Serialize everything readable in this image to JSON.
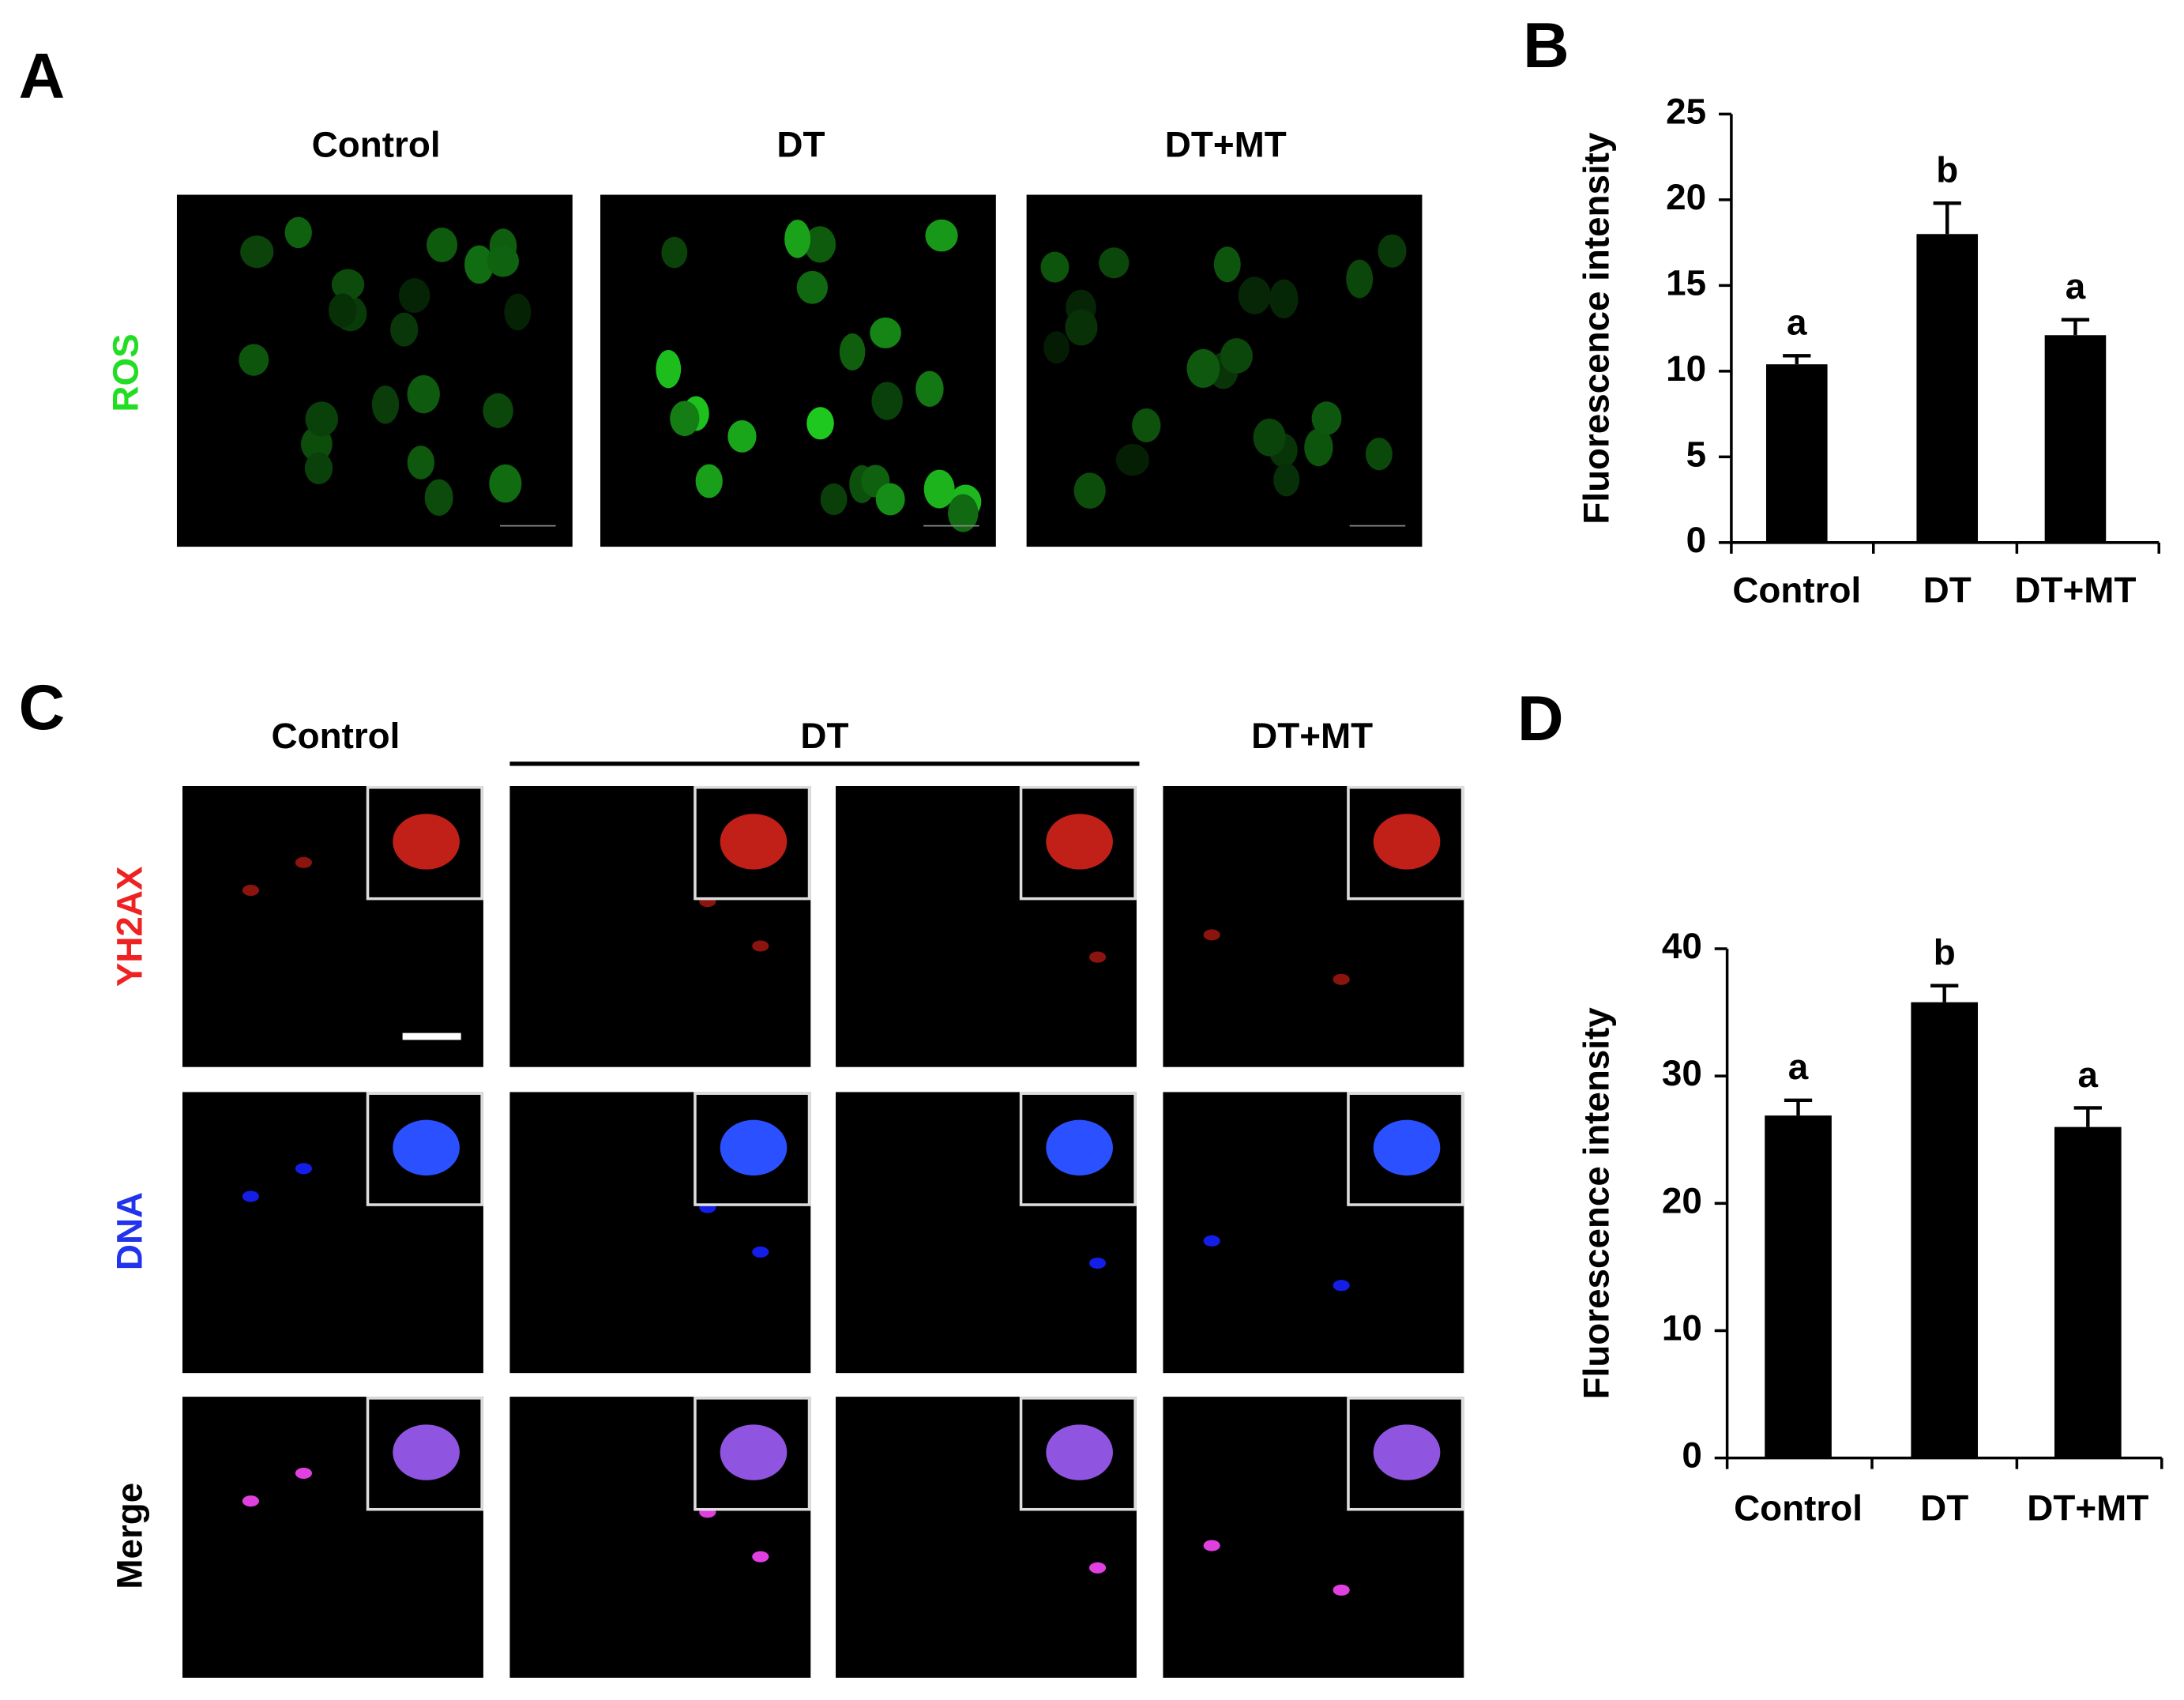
{
  "panel_labels": [
    "A",
    "B",
    "C",
    "D"
  ],
  "panel_a": {
    "columns": [
      "Control",
      "DT",
      "DT+MT"
    ],
    "row_label": "ROS"
  },
  "panel_c": {
    "columns": [
      "Control",
      "DT",
      "DT+MT"
    ],
    "row_labels": [
      "YH2AX",
      "DNA",
      "Merge"
    ]
  },
  "chart_data": [
    {
      "type": "bar",
      "ylabel": "Fluorescence intensity",
      "categories": [
        "Control",
        "DT",
        "DT+MT"
      ],
      "values": [
        10.4,
        18.0,
        12.1
      ],
      "errors": [
        0.5,
        1.8,
        0.9
      ],
      "annotations": [
        "a",
        "b",
        "a"
      ],
      "color": "#000000",
      "ylim": [
        0,
        25
      ],
      "yticks": [
        0,
        5,
        10,
        15,
        20,
        25
      ],
      "grid": false
    },
    {
      "type": "bar",
      "ylabel": "Fluorescence intensity",
      "categories": [
        "Control",
        "DT",
        "DT+MT"
      ],
      "values": [
        26.9,
        35.8,
        26.0
      ],
      "errors": [
        1.2,
        1.3,
        1.5
      ],
      "annotations": [
        "a",
        "b",
        "a"
      ],
      "color": "#000000",
      "ylim": [
        0,
        40
      ],
      "yticks": [
        0,
        10,
        20,
        30,
        40
      ],
      "grid": false
    }
  ]
}
